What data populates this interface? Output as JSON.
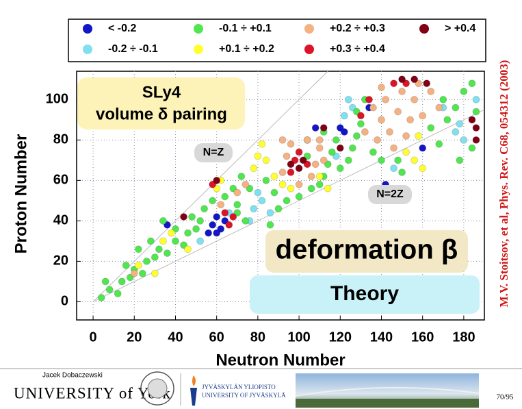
{
  "chart_data": {
    "type": "scatter",
    "xlabel": "Neutron Number",
    "ylabel": "Proton Number",
    "xlim": [
      -8,
      190
    ],
    "ylim": [
      -9,
      114
    ],
    "xticks": [
      0,
      20,
      40,
      60,
      80,
      100,
      120,
      140,
      160,
      180
    ],
    "yticks": [
      0,
      20,
      40,
      60,
      80,
      100
    ],
    "grid": true,
    "annotations": [
      "SLy4",
      "volume δ pairing",
      "N=Z",
      "N=2Z",
      "deformation β",
      "Theory"
    ],
    "source": "M.V. Stoitsov, et al, Phys. Rev. C68, 054312 (2003)",
    "series": [
      {
        "name": "< -0.2",
        "color": "#1414c8",
        "x": [
          58,
          60,
          62,
          64,
          56,
          36,
          134,
          120,
          122,
          142,
          160,
          108,
          60
        ],
        "y": [
          38,
          42,
          36,
          40,
          34,
          38,
          96,
          86,
          84,
          58,
          76,
          86,
          34
        ]
      },
      {
        "name": "-0.2 ÷ -0.1",
        "color": "#7fe0f0",
        "x": [
          78,
          82,
          86,
          80,
          76,
          122,
          126,
          124,
          176,
          178,
          180,
          118,
          52,
          66,
          146,
          170,
          186,
          104
        ],
        "y": [
          46,
          50,
          44,
          54,
          40,
          92,
          96,
          100,
          84,
          88,
          80,
          72,
          30,
          44,
          66,
          96,
          100,
          80
        ]
      },
      {
        "name": "-0.1 ÷ +0.1",
        "color": "#50e650",
        "x": [
          4,
          8,
          12,
          14,
          18,
          20,
          24,
          26,
          30,
          32,
          36,
          40,
          44,
          46,
          50,
          52,
          40,
          48,
          54,
          58,
          64,
          68,
          70,
          72,
          74,
          76,
          70,
          86,
          84,
          88,
          90,
          94,
          100,
          106,
          110,
          112,
          114,
          116,
          118,
          112,
          120,
          124,
          126,
          128,
          130,
          128,
          132,
          136,
          140,
          150,
          148,
          164,
          168,
          172,
          176,
          180,
          184,
          186,
          170,
          178,
          184,
          6,
          16,
          22,
          28,
          34,
          104
        ],
        "y": [
          2,
          6,
          4,
          10,
          12,
          16,
          14,
          20,
          22,
          26,
          24,
          30,
          28,
          34,
          36,
          40,
          36,
          42,
          46,
          50,
          52,
          56,
          48,
          62,
          40,
          56,
          44,
          38,
          60,
          54,
          46,
          50,
          52,
          56,
          58,
          62,
          68,
          74,
          80,
          84,
          66,
          70,
          76,
          82,
          88,
          94,
          100,
          74,
          70,
          64,
          70,
          86,
          78,
          90,
          96,
          104,
          108,
          94,
          100,
          70,
          76,
          10,
          18,
          26,
          30,
          40,
          72
        ]
      },
      {
        "name": "+0.1 ÷ +0.2",
        "color": "#ffff30",
        "x": [
          34,
          38,
          22,
          60,
          62,
          78,
          80,
          82,
          84,
          88,
          92,
          96,
          110,
          114,
          152,
          156,
          160,
          158,
          30,
          46
        ],
        "y": [
          30,
          34,
          18,
          56,
          60,
          66,
          72,
          78,
          70,
          62,
          58,
          56,
          62,
          56,
          74,
          70,
          66,
          82,
          14,
          26
        ]
      },
      {
        "name": "+0.2 ÷ +0.3",
        "color": "#f4b282",
        "x": [
          92,
          94,
          96,
          104,
          110,
          108,
          112,
          100,
          106,
          92,
          110,
          138,
          140,
          142,
          144,
          148,
          150,
          154,
          156,
          160,
          164,
          168,
          146,
          152,
          136,
          132,
          140,
          158,
          62,
          70,
          74,
          20
        ],
        "y": [
          64,
          72,
          78,
          80,
          76,
          68,
          70,
          58,
          62,
          80,
          80,
          80,
          90,
          100,
          84,
          94,
          104,
          90,
          100,
          92,
          104,
          96,
          76,
          82,
          96,
          84,
          106,
          108,
          48,
          54,
          58,
          14
        ]
      },
      {
        "name": "+0.3 ÷ +0.4",
        "color": "#dc1428",
        "x": [
          66,
          68,
          64,
          96,
          98,
          104,
          100,
          58,
          130,
          134,
          146,
          152
        ],
        "y": [
          38,
          42,
          44,
          64,
          70,
          68,
          74,
          58,
          92,
          100,
          108,
          108
        ]
      },
      {
        "name": "> +0.4",
        "color": "#800014",
        "x": [
          100,
          102,
          96,
          186,
          186,
          184,
          150,
          156,
          162,
          120,
          60,
          112,
          44
        ],
        "y": [
          66,
          70,
          68,
          80,
          86,
          90,
          110,
          110,
          108,
          76,
          60,
          86,
          42
        ]
      }
    ]
  },
  "footer": {
    "author": "Jacek Dobaczewski",
    "york": "UNIVERSITY of York",
    "jyu_1": "JYVÄSKYLÄN YLIOPISTO",
    "jyu_2": "UNIVERSITY OF JYVÄSKYLÄ",
    "page": "70/95"
  }
}
